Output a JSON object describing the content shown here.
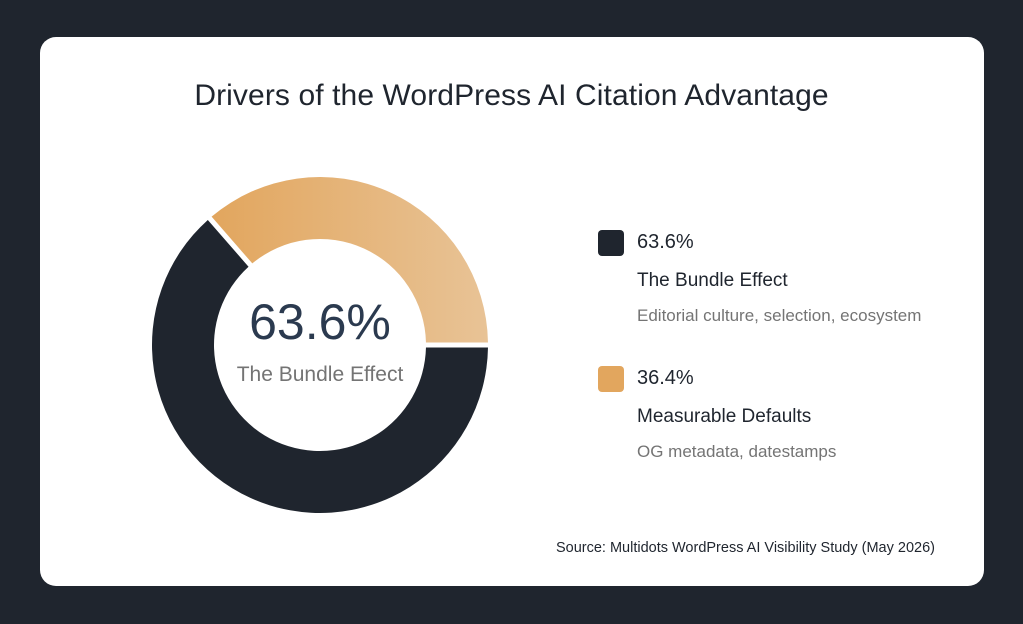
{
  "chart_data": {
    "type": "pie",
    "title": "Drivers of the WordPress AI Citation Advantage",
    "categories": [
      "The Bundle Effect",
      "Measurable Defaults"
    ],
    "values": [
      63.6,
      36.4
    ],
    "value_labels": [
      "63.6%",
      "36.4%"
    ],
    "descriptions": [
      "Editorial culture, selection, ecosystem",
      "OG metadata, datestamps"
    ],
    "colors": [
      "#1f252e",
      "#e2a65e"
    ],
    "center_value": "63.6%",
    "center_label": "The Bundle Effect",
    "legend_position": "right",
    "source": "Source: Multidots WordPress AI Visibility Study (May 2026)"
  }
}
